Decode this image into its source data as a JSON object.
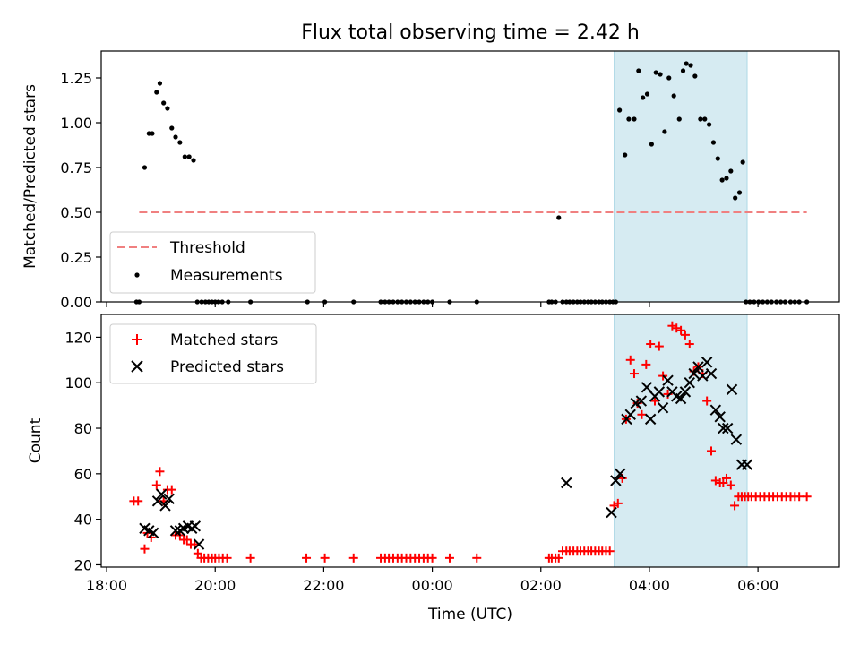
{
  "chart_data": [
    {
      "type": "scatter",
      "title": "Flux total observing time = 2.42 h",
      "ylabel": "Matched/Predicted stars",
      "ylim": [
        0,
        1.4
      ],
      "yticks": [
        0.0,
        0.25,
        0.5,
        0.75,
        1.0,
        1.25
      ],
      "ytick_labels": [
        "0.00",
        "0.25",
        "0.50",
        "0.75",
        "1.00",
        "1.25"
      ],
      "xlim_hours": [
        17.9,
        31.5
      ],
      "grid": false,
      "legend_position": "lower-left",
      "highlight_band_hours": [
        27.35,
        29.8
      ],
      "threshold": {
        "name": "Threshold",
        "value": 0.5,
        "x_hours": [
          18.6,
          30.9
        ],
        "color": "#f08080",
        "style": "dashed"
      },
      "series": [
        {
          "name": "Measurements",
          "color": "#000000",
          "marker": "dot",
          "x_hours": [
            18.55,
            18.6,
            18.7,
            18.78,
            18.84,
            18.92,
            18.98,
            19.05,
            19.12,
            19.2,
            19.27,
            19.35,
            19.44,
            19.52,
            19.6,
            19.67,
            19.75,
            19.82,
            19.88,
            19.94,
            20.0,
            20.06,
            20.13,
            20.24,
            20.65,
            21.7,
            22.02,
            22.55,
            23.05,
            23.13,
            23.2,
            23.28,
            23.36,
            23.44,
            23.52,
            23.6,
            23.68,
            23.76,
            23.84,
            23.92,
            24.0,
            24.32,
            24.82,
            26.15,
            26.2,
            26.27,
            26.33,
            26.4,
            26.47,
            26.53,
            26.6,
            26.67,
            26.73,
            26.8,
            26.87,
            26.93,
            27.0,
            27.07,
            27.13,
            27.2,
            27.27,
            27.33,
            27.38,
            27.45,
            27.55,
            27.62,
            27.72,
            27.8,
            27.88,
            27.96,
            28.04,
            28.12,
            28.2,
            28.28,
            28.36,
            28.45,
            28.55,
            28.62,
            28.68,
            28.76,
            28.84,
            28.94,
            29.02,
            29.1,
            29.18,
            29.26,
            29.34,
            29.42,
            29.5,
            29.58,
            29.66,
            29.72,
            29.78,
            29.85,
            29.93,
            30.01,
            30.09,
            30.17,
            30.25,
            30.34,
            30.42,
            30.5,
            30.6,
            30.68,
            30.76,
            30.9
          ],
          "y": [
            0,
            0,
            0.75,
            0.94,
            0.94,
            1.17,
            1.22,
            1.11,
            1.08,
            0.97,
            0.92,
            0.89,
            0.81,
            0.81,
            0.79,
            0,
            0,
            0,
            0,
            0,
            0,
            0,
            0,
            0,
            0,
            0,
            0,
            0,
            0,
            0,
            0,
            0,
            0,
            0,
            0,
            0,
            0,
            0,
            0,
            0,
            0,
            0,
            0,
            0,
            0,
            0,
            0.47,
            0,
            0,
            0,
            0,
            0,
            0,
            0,
            0,
            0,
            0,
            0,
            0,
            0,
            0,
            0,
            0,
            1.07,
            0.82,
            1.02,
            1.02,
            1.29,
            1.14,
            1.16,
            0.88,
            1.28,
            1.27,
            0.95,
            1.25,
            1.15,
            1.02,
            1.29,
            1.33,
            1.32,
            1.26,
            1.02,
            1.02,
            0.99,
            0.89,
            0.8,
            0.68,
            0.69,
            0.73,
            0.58,
            0.61,
            0.78,
            0,
            0,
            0,
            0,
            0,
            0,
            0,
            0,
            0,
            0,
            0,
            0,
            0,
            0
          ]
        }
      ]
    },
    {
      "type": "scatter",
      "xlabel": "Time (UTC)",
      "ylabel": "Count",
      "ylim": [
        19,
        130
      ],
      "yticks": [
        20,
        40,
        60,
        80,
        100,
        120
      ],
      "ytick_labels": [
        "20",
        "40",
        "60",
        "80",
        "100",
        "120"
      ],
      "xlim_hours": [
        17.9,
        31.5
      ],
      "xticks_hours": [
        18,
        20,
        22,
        24,
        26,
        28,
        30
      ],
      "xtick_labels": [
        "18:00",
        "20:00",
        "22:00",
        "00:00",
        "02:00",
        "04:00",
        "06:00"
      ],
      "grid": false,
      "legend_position": "upper-left",
      "highlight_band_hours": [
        27.35,
        29.8
      ],
      "series": [
        {
          "name": "Matched stars",
          "color": "#ff0000",
          "marker": "plus",
          "x_hours": [
            18.5,
            18.58,
            18.7,
            18.75,
            18.82,
            18.92,
            18.98,
            19.05,
            19.12,
            19.2,
            19.27,
            19.35,
            19.42,
            19.48,
            19.55,
            19.62,
            19.68,
            19.74,
            19.8,
            19.87,
            19.94,
            20.0,
            20.07,
            20.14,
            20.22,
            20.65,
            21.68,
            22.02,
            22.55,
            23.05,
            23.13,
            23.2,
            23.28,
            23.36,
            23.44,
            23.52,
            23.6,
            23.68,
            23.76,
            23.84,
            23.92,
            24.0,
            24.32,
            24.82,
            26.15,
            26.2,
            26.27,
            26.33,
            26.4,
            26.47,
            26.53,
            26.6,
            26.67,
            26.73,
            26.8,
            26.87,
            26.93,
            27.0,
            27.07,
            27.13,
            27.2,
            27.27,
            27.35,
            27.42,
            27.5,
            27.57,
            27.65,
            27.72,
            27.78,
            27.86,
            27.94,
            28.02,
            28.1,
            28.18,
            28.25,
            28.34,
            28.42,
            28.5,
            28.58,
            28.66,
            28.74,
            28.82,
            28.9,
            28.98,
            29.06,
            29.14,
            29.22,
            29.3,
            29.36,
            29.42,
            29.5,
            29.57,
            29.64,
            29.7,
            29.76,
            29.82,
            29.88,
            29.96,
            30.04,
            30.12,
            30.2,
            30.28,
            30.36,
            30.44,
            30.52,
            30.6,
            30.68,
            30.76,
            30.9
          ],
          "y": [
            48,
            48,
            27,
            34,
            32,
            55,
            61,
            48,
            53,
            53,
            33,
            33,
            31,
            31,
            29,
            29,
            25,
            23,
            23,
            23,
            23,
            23,
            23,
            23,
            23,
            23,
            23,
            23,
            23,
            23,
            23,
            23,
            23,
            23,
            23,
            23,
            23,
            23,
            23,
            23,
            23,
            23,
            23,
            23,
            23,
            23,
            23,
            23,
            26,
            26,
            26,
            26,
            26,
            26,
            26,
            26,
            26,
            26,
            26,
            26,
            26,
            26,
            46,
            47,
            58,
            84,
            110,
            104,
            91,
            86,
            108,
            117,
            92,
            116,
            103,
            95,
            125,
            124,
            123,
            121,
            117,
            105,
            107,
            104,
            92,
            70,
            57,
            56,
            56,
            58,
            55,
            46,
            50,
            50,
            50,
            50,
            50,
            50,
            50,
            50,
            50,
            50,
            50,
            50,
            50,
            50,
            50,
            50,
            50
          ]
        },
        {
          "name": "Predicted stars",
          "color": "#000000",
          "marker": "x",
          "x_hours": [
            18.7,
            18.78,
            18.86,
            18.94,
            19.01,
            19.08,
            19.15,
            19.27,
            19.35,
            19.42,
            19.5,
            19.57,
            19.63,
            19.7,
            26.47,
            27.3,
            27.38,
            27.46,
            27.58,
            27.65,
            27.75,
            27.85,
            27.95,
            28.02,
            28.1,
            28.18,
            28.25,
            28.34,
            28.42,
            28.5,
            28.58,
            28.66,
            28.74,
            28.82,
            28.9,
            28.98,
            29.06,
            29.14,
            29.22,
            29.3,
            29.36,
            29.44,
            29.52,
            29.6,
            29.7,
            29.8
          ],
          "y": [
            36,
            35,
            34,
            48,
            51,
            46,
            49,
            35,
            35,
            36,
            37,
            36,
            37,
            29,
            56,
            43,
            57,
            60,
            84,
            86,
            91,
            92,
            98,
            84,
            94,
            96,
            89,
            101,
            96,
            94,
            93,
            96,
            100,
            104,
            107,
            103,
            109,
            104,
            88,
            85,
            80,
            80,
            97,
            75,
            64,
            64
          ]
        }
      ]
    }
  ]
}
